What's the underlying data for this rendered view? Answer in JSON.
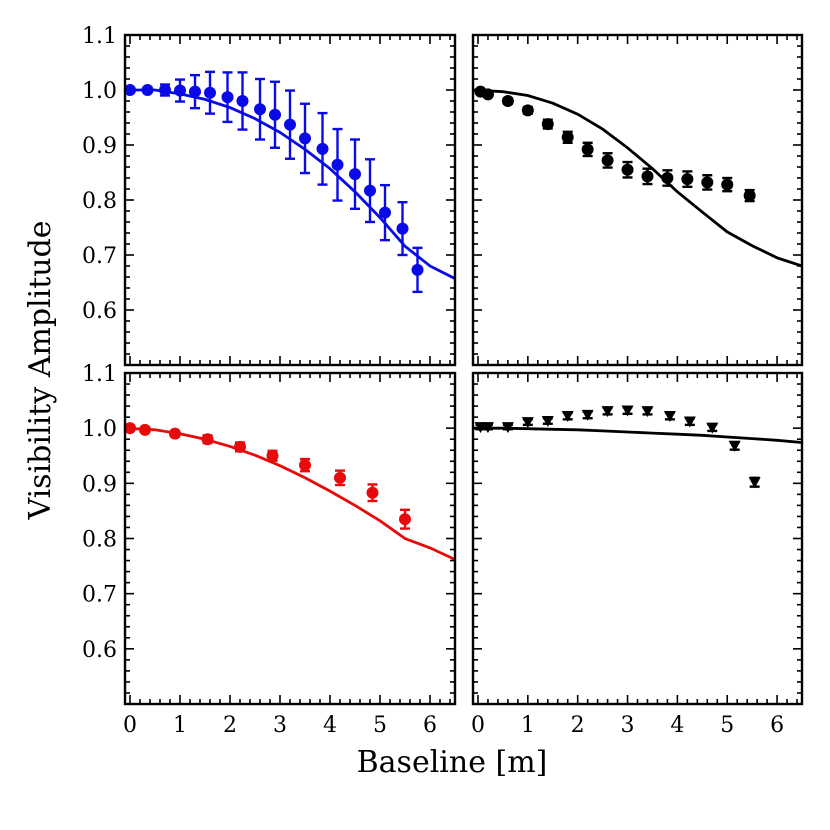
{
  "xlabel": "Baseline [m]",
  "ylabel": "Visibility Amplitude",
  "chart_data": [
    {
      "type": "scatter",
      "position": "top-left",
      "color": "#0a0ae6",
      "marker": "circle",
      "xlim": [
        -0.1,
        6.5
      ],
      "ylim": [
        0.5,
        1.1
      ],
      "xticks": [
        "",
        "",
        "",
        "",
        "",
        "",
        ""
      ],
      "yticks": [
        "1.1",
        "1.0",
        "0.9",
        "0.8",
        "0.7",
        "0.6"
      ],
      "points": [
        {
          "x": 0.0,
          "y": 1.0,
          "err": 0.003
        },
        {
          "x": 0.35,
          "y": 1.0,
          "err": 0.004
        },
        {
          "x": 0.7,
          "y": 1.0,
          "err": 0.01
        },
        {
          "x": 1.0,
          "y": 0.999,
          "err": 0.02
        },
        {
          "x": 1.3,
          "y": 0.997,
          "err": 0.03
        },
        {
          "x": 1.6,
          "y": 0.995,
          "err": 0.038
        },
        {
          "x": 1.95,
          "y": 0.987,
          "err": 0.045
        },
        {
          "x": 2.25,
          "y": 0.98,
          "err": 0.052
        },
        {
          "x": 2.6,
          "y": 0.965,
          "err": 0.055
        },
        {
          "x": 2.9,
          "y": 0.955,
          "err": 0.06
        },
        {
          "x": 3.2,
          "y": 0.937,
          "err": 0.062
        },
        {
          "x": 3.5,
          "y": 0.912,
          "err": 0.063
        },
        {
          "x": 3.85,
          "y": 0.893,
          "err": 0.065
        },
        {
          "x": 4.15,
          "y": 0.864,
          "err": 0.065
        },
        {
          "x": 4.5,
          "y": 0.847,
          "err": 0.063
        },
        {
          "x": 4.8,
          "y": 0.817,
          "err": 0.057
        },
        {
          "x": 5.1,
          "y": 0.777,
          "err": 0.05
        },
        {
          "x": 5.45,
          "y": 0.748,
          "err": 0.048
        },
        {
          "x": 5.75,
          "y": 0.673,
          "err": 0.04
        }
      ],
      "model": [
        [
          -0.1,
          1.0
        ],
        [
          0.5,
          1.0
        ],
        [
          1.0,
          0.993
        ],
        [
          1.5,
          0.983
        ],
        [
          2.0,
          0.968
        ],
        [
          2.5,
          0.948
        ],
        [
          3.0,
          0.923
        ],
        [
          3.5,
          0.892
        ],
        [
          4.0,
          0.857
        ],
        [
          4.5,
          0.815
        ],
        [
          5.0,
          0.768
        ],
        [
          5.5,
          0.716
        ],
        [
          6.0,
          0.68
        ],
        [
          6.5,
          0.657
        ]
      ]
    },
    {
      "type": "scatter",
      "position": "top-right",
      "color": "#000000",
      "marker": "circle",
      "xlim": [
        -0.1,
        6.5
      ],
      "ylim": [
        0.5,
        1.1
      ],
      "xticks": [
        "",
        "",
        "",
        "",
        "",
        "",
        ""
      ],
      "yticks": [
        "",
        "",
        "",
        "",
        "",
        ""
      ],
      "points": [
        {
          "x": 0.05,
          "y": 0.997,
          "err": 0.004
        },
        {
          "x": 0.2,
          "y": 0.992,
          "err": 0.004
        },
        {
          "x": 0.6,
          "y": 0.98,
          "err": 0.005
        },
        {
          "x": 1.0,
          "y": 0.963,
          "err": 0.006
        },
        {
          "x": 1.4,
          "y": 0.938,
          "err": 0.008
        },
        {
          "x": 1.8,
          "y": 0.914,
          "err": 0.01
        },
        {
          "x": 2.2,
          "y": 0.892,
          "err": 0.012
        },
        {
          "x": 2.6,
          "y": 0.872,
          "err": 0.013
        },
        {
          "x": 3.0,
          "y": 0.855,
          "err": 0.014
        },
        {
          "x": 3.4,
          "y": 0.843,
          "err": 0.014
        },
        {
          "x": 3.8,
          "y": 0.84,
          "err": 0.014
        },
        {
          "x": 4.2,
          "y": 0.838,
          "err": 0.014
        },
        {
          "x": 4.6,
          "y": 0.832,
          "err": 0.013
        },
        {
          "x": 5.0,
          "y": 0.828,
          "err": 0.012
        },
        {
          "x": 5.45,
          "y": 0.808,
          "err": 0.01
        }
      ],
      "model": [
        [
          -0.1,
          1.0
        ],
        [
          0.5,
          0.997
        ],
        [
          1.0,
          0.99
        ],
        [
          1.5,
          0.976
        ],
        [
          2.0,
          0.956
        ],
        [
          2.5,
          0.929
        ],
        [
          3.0,
          0.895
        ],
        [
          3.5,
          0.857
        ],
        [
          4.0,
          0.815
        ],
        [
          4.5,
          0.778
        ],
        [
          5.0,
          0.742
        ],
        [
          5.5,
          0.717
        ],
        [
          6.0,
          0.695
        ],
        [
          6.5,
          0.68
        ]
      ]
    },
    {
      "type": "scatter",
      "position": "bottom-left",
      "color": "#e60a0a",
      "marker": "circle",
      "xlim": [
        -0.1,
        6.5
      ],
      "ylim": [
        0.5,
        1.1
      ],
      "xticks": [
        "0",
        "1",
        "2",
        "3",
        "4",
        "5",
        "6"
      ],
      "yticks": [
        "1.1",
        "1.0",
        "0.9",
        "0.8",
        "0.7",
        "0.6"
      ],
      "points": [
        {
          "x": 0.0,
          "y": 1.0,
          "err": 0.003
        },
        {
          "x": 0.3,
          "y": 0.997,
          "err": 0.004
        },
        {
          "x": 0.9,
          "y": 0.99,
          "err": 0.005
        },
        {
          "x": 1.55,
          "y": 0.98,
          "err": 0.007
        },
        {
          "x": 2.2,
          "y": 0.966,
          "err": 0.008
        },
        {
          "x": 2.85,
          "y": 0.95,
          "err": 0.009
        },
        {
          "x": 3.5,
          "y": 0.933,
          "err": 0.011
        },
        {
          "x": 4.2,
          "y": 0.91,
          "err": 0.013
        },
        {
          "x": 4.85,
          "y": 0.883,
          "err": 0.015
        },
        {
          "x": 5.5,
          "y": 0.835,
          "err": 0.017
        }
      ],
      "model": [
        [
          -0.1,
          1.0
        ],
        [
          0.5,
          0.997
        ],
        [
          1.0,
          0.99
        ],
        [
          1.5,
          0.98
        ],
        [
          2.0,
          0.967
        ],
        [
          2.5,
          0.951
        ],
        [
          3.0,
          0.932
        ],
        [
          3.5,
          0.91
        ],
        [
          4.0,
          0.886
        ],
        [
          4.5,
          0.86
        ],
        [
          5.0,
          0.832
        ],
        [
          5.5,
          0.8
        ],
        [
          6.0,
          0.783
        ],
        [
          6.5,
          0.762
        ]
      ]
    },
    {
      "type": "scatter",
      "position": "bottom-right",
      "color": "#000000",
      "marker": "triangle-down",
      "xlim": [
        -0.1,
        6.5
      ],
      "ylim": [
        0.5,
        1.1
      ],
      "xticks": [
        "0",
        "1",
        "2",
        "3",
        "4",
        "5",
        "6"
      ],
      "yticks": [
        "",
        "",
        "",
        "",
        "",
        ""
      ],
      "points": [
        {
          "x": 0.05,
          "y": 1.002,
          "err": 0.004
        },
        {
          "x": 0.2,
          "y": 1.002,
          "err": 0.004
        },
        {
          "x": 0.6,
          "y": 1.002,
          "err": 0.004
        },
        {
          "x": 1.0,
          "y": 1.011,
          "err": 0.005
        },
        {
          "x": 1.4,
          "y": 1.013,
          "err": 0.005
        },
        {
          "x": 1.8,
          "y": 1.022,
          "err": 0.006
        },
        {
          "x": 2.2,
          "y": 1.024,
          "err": 0.006
        },
        {
          "x": 2.6,
          "y": 1.031,
          "err": 0.006
        },
        {
          "x": 3.0,
          "y": 1.032,
          "err": 0.006
        },
        {
          "x": 3.4,
          "y": 1.031,
          "err": 0.006
        },
        {
          "x": 3.85,
          "y": 1.022,
          "err": 0.006
        },
        {
          "x": 4.25,
          "y": 1.012,
          "err": 0.006
        },
        {
          "x": 4.7,
          "y": 1.001,
          "err": 0.006
        },
        {
          "x": 5.15,
          "y": 0.968,
          "err": 0.007
        },
        {
          "x": 5.55,
          "y": 0.902,
          "err": 0.008
        }
      ],
      "model": [
        [
          -0.1,
          1.0
        ],
        [
          0.5,
          1.0
        ],
        [
          1.0,
          0.999
        ],
        [
          1.5,
          0.998
        ],
        [
          2.0,
          0.997
        ],
        [
          2.5,
          0.995
        ],
        [
          3.0,
          0.993
        ],
        [
          3.5,
          0.991
        ],
        [
          4.0,
          0.989
        ],
        [
          4.5,
          0.987
        ],
        [
          5.0,
          0.984
        ],
        [
          5.5,
          0.981
        ],
        [
          6.0,
          0.978
        ],
        [
          6.5,
          0.974
        ]
      ]
    }
  ]
}
